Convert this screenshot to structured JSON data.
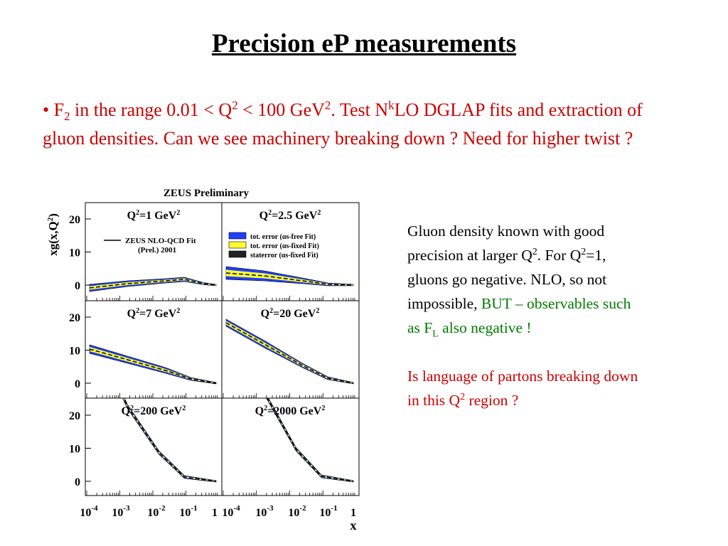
{
  "title": "Precision eP measurements",
  "bullet": {
    "parts": [
      "• F",
      "2",
      " in the range 0.01 < Q",
      "2",
      " < 100 GeV",
      "2",
      ".  Test N",
      "k",
      "LO DGLAP fits and extraction of gluon densities.  Can we see machinery breaking down ? Need for higher twist ?"
    ]
  },
  "figure": {
    "title": "ZEUS Preliminary",
    "y_label": {
      "base": "xg(x,Q",
      "sup": "2",
      "end": ")"
    },
    "x_label": "x",
    "yticks": [
      "20",
      "10",
      "0"
    ],
    "xticks": [
      {
        "base": "10",
        "exp": "-4"
      },
      {
        "base": "10",
        "exp": "-3"
      },
      {
        "base": "10",
        "exp": "-2"
      },
      {
        "base": "10",
        "exp": "-1"
      },
      {
        "base": "1",
        "exp": ""
      }
    ],
    "panels": [
      {
        "q": "Q",
        "s1": "2",
        "mid": "=1 GeV",
        "s2": "2"
      },
      {
        "q": "Q",
        "s1": "2",
        "mid": "=2.5 GeV",
        "s2": "2"
      },
      {
        "q": "Q",
        "s1": "2",
        "mid": "=7 GeV",
        "s2": "2"
      },
      {
        "q": "Q",
        "s1": "2",
        "mid": "=20 GeV",
        "s2": "2"
      },
      {
        "q": "Q",
        "s1": "2",
        "mid": "=200 GeV",
        "s2": "2"
      },
      {
        "q": "Q",
        "s1": "2",
        "mid": "=2000 GeV",
        "s2": "2"
      }
    ],
    "fit_legend": [
      "ZEUS NLO-QCD Fit",
      "(Prel.) 2001"
    ],
    "band_legend": [
      "tot. error (αs-free Fit)",
      "tot. error (αs-fixed Fit)",
      "staterror (αs-fixed Fit)"
    ]
  },
  "side": {
    "p1": [
      "Gluon density known with good precision at larger Q",
      "2",
      ". For Q",
      "2",
      "=1, gluons go negative.  NLO, so not impossible, "
    ],
    "p1_green": [
      "BUT – observables such as F",
      "L",
      " also negative !"
    ],
    "p2": [
      "Is language of partons breaking down in this Q",
      "2",
      " region ?"
    ]
  }
}
